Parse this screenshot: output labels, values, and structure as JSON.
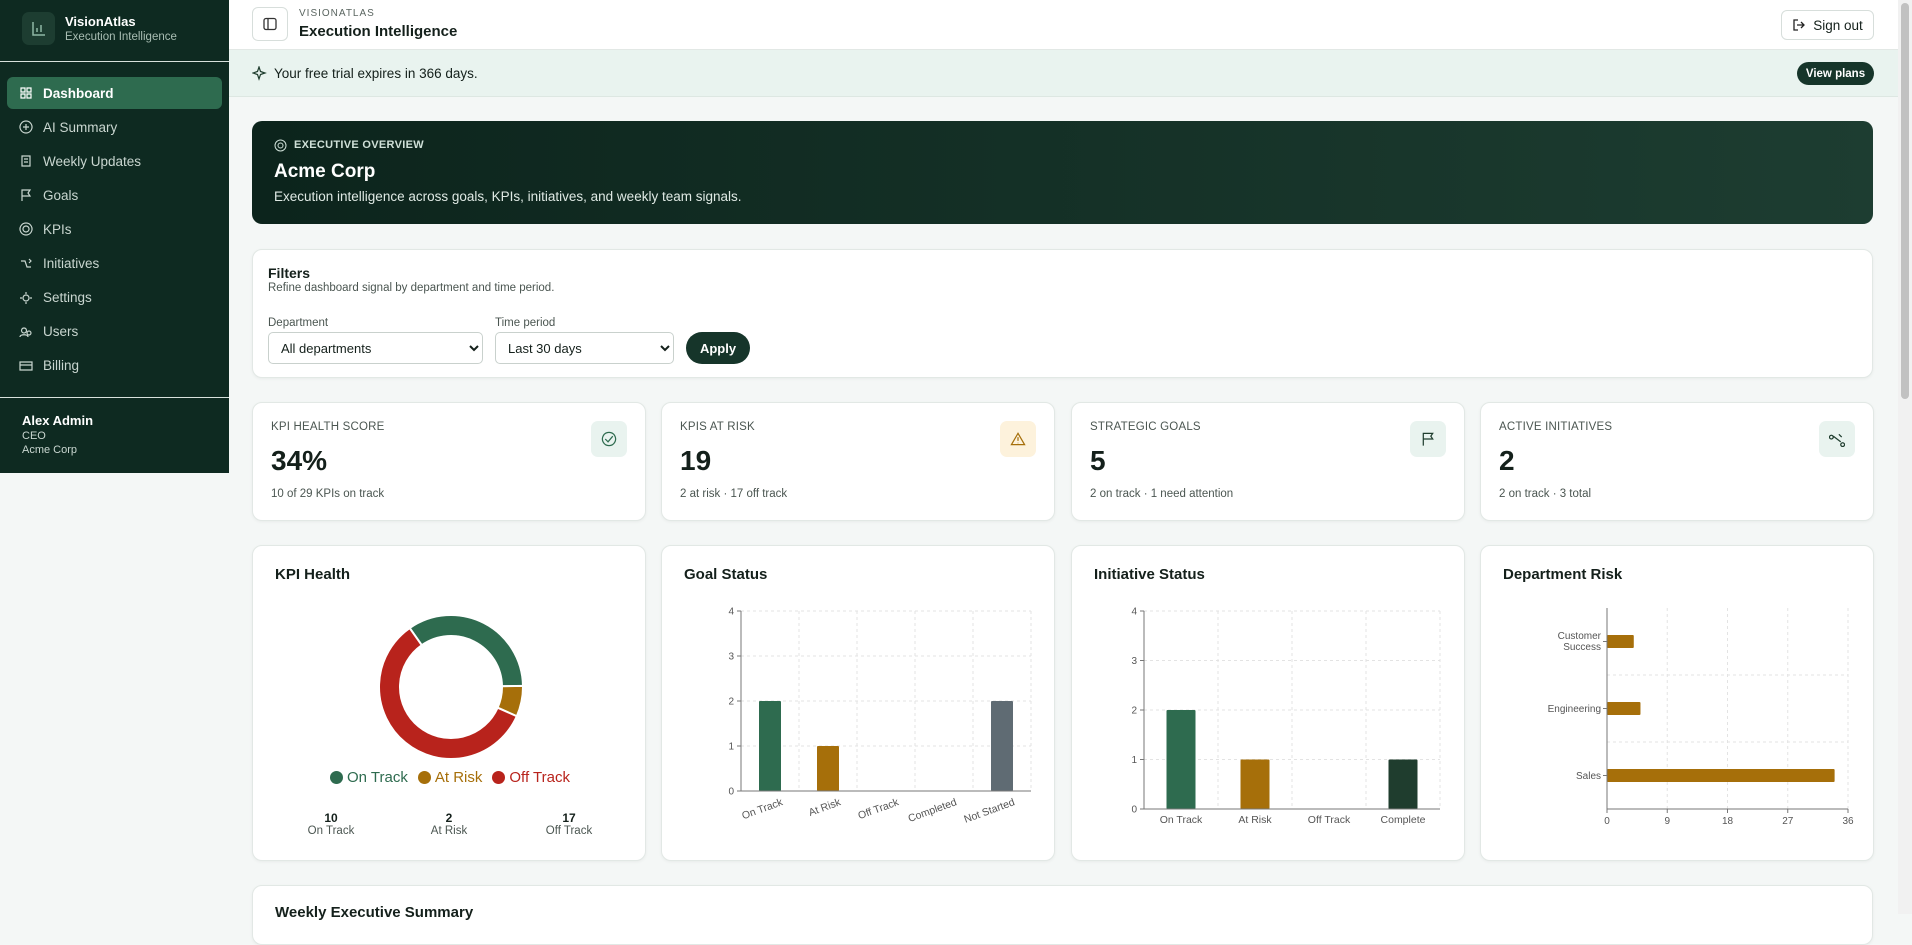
{
  "sidebar": {
    "brand": "VisionAtlas",
    "tagline": "Execution Intelligence",
    "nav": [
      "Dashboard",
      "AI Summary",
      "Weekly Updates",
      "Goals",
      "KPIs",
      "Initiatives",
      "Settings",
      "Users",
      "Billing"
    ],
    "user": {
      "name": "Alex Admin",
      "role": "CEO",
      "company": "Acme Corp"
    }
  },
  "header": {
    "eyebrow": "VISIONATLAS",
    "title": "Execution Intelligence",
    "sign_out": "Sign out"
  },
  "banner": {
    "text": "Your free trial expires in 366 days.",
    "button": "View plans"
  },
  "overview": {
    "eyebrow": "EXECUTIVE OVERVIEW",
    "title": "Acme Corp",
    "subtitle": "Execution intelligence across goals, KPIs, initiatives, and weekly team signals."
  },
  "filters": {
    "title": "Filters",
    "subtitle": "Refine dashboard signal by department and time period.",
    "department_label": "Department",
    "department_value": "All departments",
    "period_label": "Time period",
    "period_value": "Last 30 days",
    "apply": "Apply"
  },
  "kpi_cards": [
    {
      "label": "KPI HEALTH SCORE",
      "value": "34%",
      "note": "10 of 29 KPIs on track"
    },
    {
      "label": "KPIS AT RISK",
      "value": "19",
      "note": "2 at risk · 17 off track"
    },
    {
      "label": "STRATEGIC GOALS",
      "value": "5",
      "note": "2 on track · 1 need attention"
    },
    {
      "label": "ACTIVE INITIATIVES",
      "value": "2",
      "note": "2 on track · 3 total"
    }
  ],
  "chart_data": [
    {
      "type": "doughnut",
      "title": "KPI Health",
      "categories": [
        "On Track",
        "At Risk",
        "Off Track"
      ],
      "values": [
        10,
        2,
        17
      ],
      "colors": [
        "#2e6b4f",
        "#a66f0a",
        "#b8231c"
      ]
    },
    {
      "type": "bar",
      "title": "Goal Status",
      "categories": [
        "On Track",
        "At Risk",
        "Off Track",
        "Completed",
        "Not Started"
      ],
      "values": [
        2,
        1,
        0,
        0,
        2
      ],
      "colors": [
        "#2e6b4f",
        "#a66f0a",
        "#b8231c",
        "#1f3d2e",
        "#5f6b73"
      ],
      "ylim": [
        0,
        4
      ],
      "yticks": [
        0,
        1,
        2,
        3,
        4
      ],
      "grid": true
    },
    {
      "type": "bar",
      "title": "Initiative Status",
      "categories": [
        "On Track",
        "At Risk",
        "Off Track",
        "Complete"
      ],
      "values": [
        2,
        1,
        0,
        1
      ],
      "colors": [
        "#2e6b4f",
        "#a66f0a",
        "#b8231c",
        "#1f3d2e"
      ],
      "ylim": [
        0,
        4
      ],
      "yticks": [
        0,
        1,
        2,
        3,
        4
      ],
      "grid": true
    },
    {
      "type": "hbar",
      "title": "Department Risk",
      "categories": [
        "Customer Success",
        "Engineering",
        "Sales"
      ],
      "values": [
        4,
        5,
        34
      ],
      "color": "#a66f0a",
      "xlim": [
        0,
        36
      ],
      "xticks": [
        0,
        9,
        18,
        27,
        36
      ],
      "grid": true
    }
  ],
  "section_title": "Weekly Executive Summary"
}
